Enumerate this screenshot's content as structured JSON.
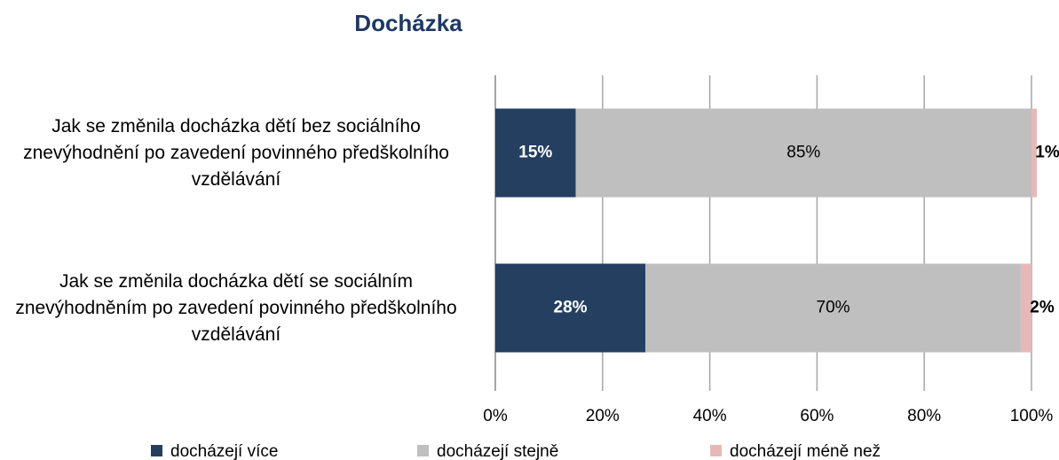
{
  "chart_data": {
    "type": "stacked-bar-horizontal",
    "title": "Docházka",
    "categories": [
      "Jak se změnila docházka dětí bez sociálního znevýhodnění po zavedení povinného předškolního vzdělávání",
      "Jak se změnila docházka dětí se sociálním znevýhodněním po zavedení povinného předškolního vzdělávání"
    ],
    "series": [
      {
        "name": "docházejí více",
        "color": "#243f60",
        "values": [
          15,
          28
        ],
        "value_labels": [
          "15%",
          "28%"
        ]
      },
      {
        "name": "docházejí stejně",
        "color": "#bfbfbf",
        "values": [
          85,
          70
        ],
        "value_labels": [
          "85%",
          "70%"
        ]
      },
      {
        "name": "docházejí méně než",
        "color": "#e6b9b8",
        "values": [
          1,
          2
        ],
        "value_labels": [
          "1%",
          "2%"
        ]
      }
    ],
    "xlim": [
      0,
      100
    ],
    "xticks": [
      {
        "value": 0,
        "label": "0%"
      },
      {
        "value": 20,
        "label": "20%"
      },
      {
        "value": 40,
        "label": "40%"
      },
      {
        "value": 60,
        "label": "60%"
      },
      {
        "value": 80,
        "label": "80%"
      },
      {
        "value": 100,
        "label": "100%"
      }
    ],
    "grid": true,
    "legend": "bottom"
  }
}
